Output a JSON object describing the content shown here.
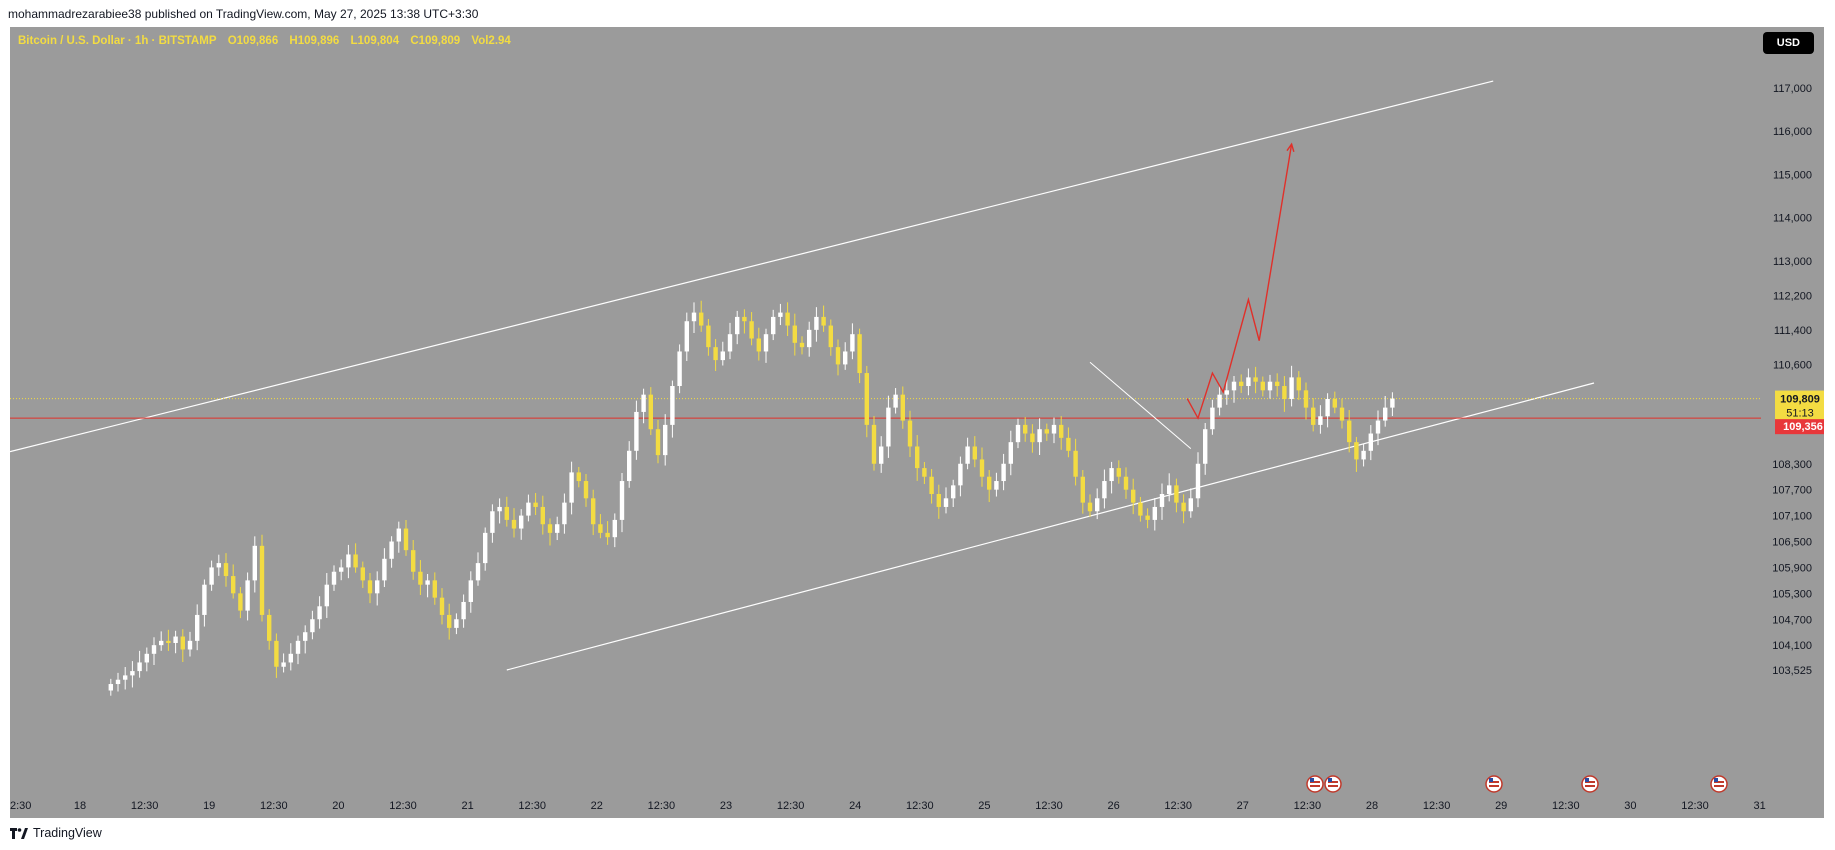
{
  "header": {
    "published_text": "mohammadrezarabiee38 published on TradingView.com, May 27, 2025 13:38 UTC+3:30"
  },
  "legend": {
    "symbol": "Bitcoin / U.S. Dollar · 1h · BITSTAMP",
    "open": "O109,866",
    "high": "H109,896",
    "low": "L109,804",
    "close": "C109,809",
    "volume": "Vol2.94"
  },
  "currency_button": "USD",
  "footer": {
    "brand": "TradingView"
  },
  "colors": {
    "background": "#9b9b9b",
    "candle_up": "#ffffff",
    "candle_down": "#f3dc42",
    "channel_line": "#ffffff",
    "forecast_line": "#e0302a",
    "support_line": "#e0302a",
    "current_price_badge": "#f3dc42",
    "support_badge": "#e8373a"
  },
  "chart_data": {
    "type": "candlestick",
    "x_label_ticks": [
      "12:30",
      "18",
      "12:30",
      "19",
      "12:30",
      "20",
      "12:30",
      "21",
      "12:30",
      "22",
      "12:30",
      "23",
      "12:30",
      "24",
      "12:30",
      "25",
      "12:30",
      "26",
      "12:30",
      "27",
      "12:30",
      "28",
      "12:30",
      "29",
      "12:30",
      "30",
      "12:30",
      "31"
    ],
    "x_label_ticks_first": "2:30",
    "y_ticks": [
      "117,000",
      "116,000",
      "115,000",
      "114,000",
      "113,000",
      "112,200",
      "111,400",
      "110,600",
      "108,300",
      "107,700",
      "107,100",
      "106,500",
      "105,900",
      "105,300",
      "104,700",
      "104,100",
      "103,525"
    ],
    "y_range": [
      103525,
      117500
    ],
    "current_price": {
      "value": 109809,
      "label": "109,809",
      "countdown": "51:13"
    },
    "support_level": {
      "value": 109356,
      "label": "109,356"
    },
    "channel_upper": [
      {
        "x": 0,
        "y": 108580
      },
      {
        "x": 206,
        "y": 117160
      }
    ],
    "channel_lower": [
      {
        "x": 69,
        "y": 103525
      },
      {
        "x": 220,
        "y": 110170
      }
    ],
    "wedge_line": [
      {
        "x": 150,
        "y": 110650
      },
      {
        "x": 164,
        "y": 108650
      }
    ],
    "forecast_path": [
      {
        "x": 163.5,
        "y": 109809
      },
      {
        "x": 165,
        "y": 109356
      },
      {
        "x": 167,
        "y": 110400
      },
      {
        "x": 168.5,
        "y": 109960
      },
      {
        "x": 172,
        "y": 112100
      },
      {
        "x": 173.5,
        "y": 111150
      },
      {
        "x": 178,
        "y": 115700
      }
    ],
    "candles_hourly_closes": [
      103200,
      103300,
      103400,
      103500,
      103700,
      103900,
      104100,
      104200,
      104150,
      104300,
      104000,
      104200,
      104800,
      105500,
      105900,
      106000,
      105700,
      105300,
      104900,
      105600,
      106400,
      104800,
      104200,
      103600,
      103700,
      103900,
      104200,
      104400,
      104700,
      105000,
      105500,
      105800,
      105900,
      106200,
      105900,
      105600,
      105300,
      105600,
      106100,
      106500,
      106800,
      106300,
      105800,
      105500,
      105600,
      105200,
      104800,
      104500,
      104700,
      105100,
      105600,
      106000,
      106700,
      107200,
      107300,
      107000,
      106800,
      107100,
      107400,
      107300,
      106900,
      106700,
      106900,
      107400,
      108100,
      107900,
      107500,
      106900,
      106700,
      106600,
      107000,
      107900,
      108600,
      109500,
      109900,
      109100,
      108500,
      109200,
      110100,
      110900,
      111600,
      111800,
      111500,
      111000,
      110700,
      110900,
      111300,
      111700,
      111600,
      111200,
      110900,
      111300,
      111700,
      111800,
      111500,
      111100,
      111000,
      111400,
      111700,
      111500,
      111000,
      110600,
      110900,
      111300,
      110400,
      109200,
      108300,
      108700,
      109600,
      109900,
      109300,
      108700,
      108200,
      108000,
      107600,
      107300,
      107500,
      107800,
      108300,
      108700,
      108400,
      108000,
      107700,
      107900,
      108300,
      108800,
      109200,
      109000,
      108800,
      109100,
      109000,
      109200,
      108900,
      108600,
      108000,
      107400,
      107200,
      107500,
      107900,
      108200,
      108000,
      107700,
      107400,
      107100,
      107000,
      107300,
      107600,
      107800,
      107400,
      107200,
      107500,
      108300,
      109100,
      109600,
      109900,
      110000,
      110200,
      110100,
      110300,
      110200,
      110000,
      110200,
      110100,
      109800,
      110300,
      110000,
      109600,
      109200,
      109400,
      109800,
      109600,
      109300,
      108800,
      108400,
      108600,
      109000,
      109300,
      109600,
      109809
    ]
  }
}
